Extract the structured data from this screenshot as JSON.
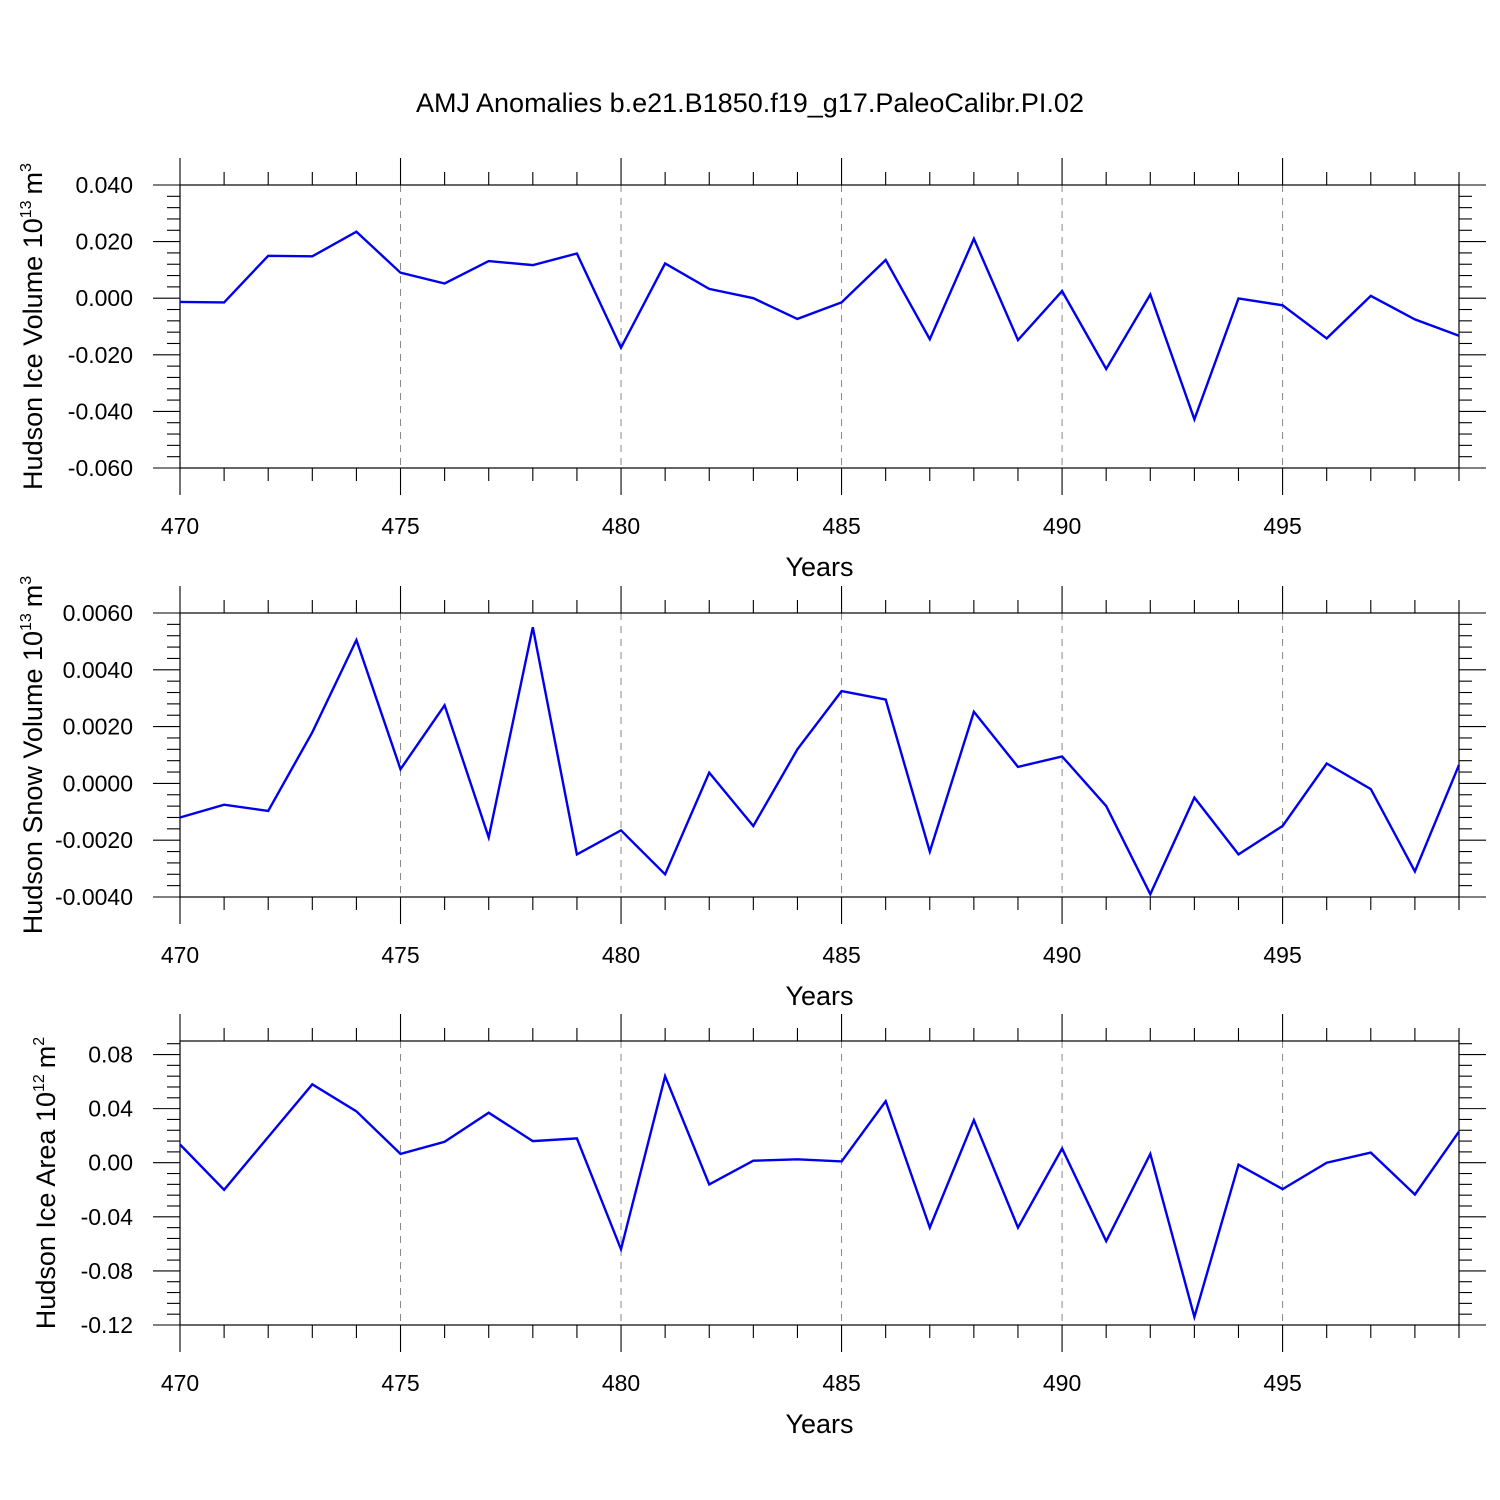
{
  "title": "AMJ Anomalies b.e21.B1850.f19_g17.PaleoCalibr.PI.02",
  "colors": {
    "line": "#0000ee",
    "grid": "#888888",
    "axis": "#000000"
  },
  "chart_data": [
    {
      "type": "line",
      "xlabel": "Years",
      "ylabel": {
        "text": "Hudson Ice Volume 10",
        "exponent": "13",
        "unit": "m",
        "unit_exponent": "3"
      },
      "xlim": [
        470,
        499
      ],
      "ylim": [
        -0.06,
        0.04
      ],
      "x_ticks": [
        "470",
        "475",
        "480",
        "485",
        "490",
        "495"
      ],
      "y_ticks": [
        {
          "value": -0.06,
          "label": "-0.060"
        },
        {
          "value": -0.04,
          "label": "-0.040"
        },
        {
          "value": -0.02,
          "label": "-0.020"
        },
        {
          "value": 0.0,
          "label": "0.000"
        },
        {
          "value": 0.02,
          "label": "0.020"
        },
        {
          "value": 0.04,
          "label": "0.040"
        }
      ],
      "x": [
        470,
        471,
        472,
        473,
        474,
        475,
        476,
        477,
        478,
        479,
        480,
        481,
        482,
        483,
        484,
        485,
        486,
        487,
        488,
        489,
        490,
        491,
        492,
        493,
        494,
        495,
        496,
        497,
        498,
        499
      ],
      "values": [
        -0.0013,
        -0.0015,
        0.015,
        0.0148,
        0.0235,
        0.009,
        0.0052,
        0.0131,
        0.0117,
        0.0158,
        -0.0175,
        0.0123,
        0.0033,
        0.0,
        -0.0073,
        -0.0015,
        0.0135,
        -0.0145,
        0.021,
        -0.0148,
        0.0025,
        -0.025,
        0.0013,
        -0.0428,
        -0.0001,
        -0.0025,
        -0.0142,
        0.0008,
        -0.0075,
        -0.0133
      ],
      "grid_x": [
        475,
        480,
        485,
        490,
        495
      ]
    },
    {
      "type": "line",
      "xlabel": "Years",
      "ylabel": {
        "text": "Hudson Snow Volume 10",
        "exponent": "13",
        "unit": "m",
        "unit_exponent": "3"
      },
      "xlim": [
        470,
        499
      ],
      "ylim": [
        -0.004,
        0.006
      ],
      "x_ticks": [
        "470",
        "475",
        "480",
        "485",
        "490",
        "495"
      ],
      "y_ticks": [
        {
          "value": -0.004,
          "label": "-0.0040"
        },
        {
          "value": -0.002,
          "label": "-0.0020"
        },
        {
          "value": 0.0,
          "label": "0.0000"
        },
        {
          "value": 0.002,
          "label": "0.0020"
        },
        {
          "value": 0.004,
          "label": "0.0040"
        },
        {
          "value": 0.006,
          "label": "0.0060"
        }
      ],
      "x": [
        470,
        471,
        472,
        473,
        474,
        475,
        476,
        477,
        478,
        479,
        480,
        481,
        482,
        483,
        484,
        485,
        486,
        487,
        488,
        489,
        490,
        491,
        492,
        493,
        494,
        495,
        496,
        497,
        498,
        499
      ],
      "values": [
        -0.0012,
        -0.00075,
        -0.00097,
        0.0018,
        0.00505,
        0.0005,
        0.00275,
        -0.0019,
        0.0055,
        -0.0025,
        -0.00165,
        -0.0032,
        0.00038,
        -0.0015,
        0.0012,
        0.00325,
        0.00295,
        -0.0024,
        0.00252,
        0.00058,
        0.00095,
        -0.0008,
        -0.0039,
        -0.0005,
        -0.0025,
        -0.0015,
        0.0007,
        -0.0002,
        -0.0031,
        0.00065
      ],
      "grid_x": [
        475,
        480,
        485,
        490,
        495
      ]
    },
    {
      "type": "line",
      "xlabel": "Years",
      "ylabel": {
        "text": "Hudson Ice Area 10",
        "exponent": "12",
        "unit": "m",
        "unit_exponent": "2"
      },
      "xlim": [
        470,
        499
      ],
      "ylim": [
        -0.12,
        0.09
      ],
      "x_ticks": [
        "470",
        "475",
        "480",
        "485",
        "490",
        "495"
      ],
      "y_ticks": [
        {
          "value": -0.12,
          "label": "-0.12"
        },
        {
          "value": -0.08,
          "label": "-0.08"
        },
        {
          "value": -0.04,
          "label": "-0.04"
        },
        {
          "value": 0.0,
          "label": "0.00"
        },
        {
          "value": 0.04,
          "label": "0.04"
        },
        {
          "value": 0.08,
          "label": "0.08"
        }
      ],
      "x": [
        470,
        471,
        472,
        473,
        474,
        475,
        476,
        477,
        478,
        479,
        480,
        481,
        482,
        483,
        484,
        485,
        486,
        487,
        488,
        489,
        490,
        491,
        492,
        493,
        494,
        495,
        496,
        497,
        498,
        499
      ],
      "values": [
        0.0135,
        -0.02,
        0.019,
        0.058,
        0.038,
        0.0065,
        0.0155,
        0.037,
        0.016,
        0.018,
        -0.064,
        0.064,
        -0.016,
        0.0015,
        0.0025,
        0.001,
        0.0455,
        -0.048,
        0.0315,
        -0.048,
        0.0105,
        -0.058,
        0.0065,
        -0.114,
        -0.0015,
        -0.0195,
        0.0,
        0.0075,
        -0.0235,
        0.023
      ],
      "grid_x": [
        475,
        480,
        485,
        490,
        495
      ]
    }
  ]
}
